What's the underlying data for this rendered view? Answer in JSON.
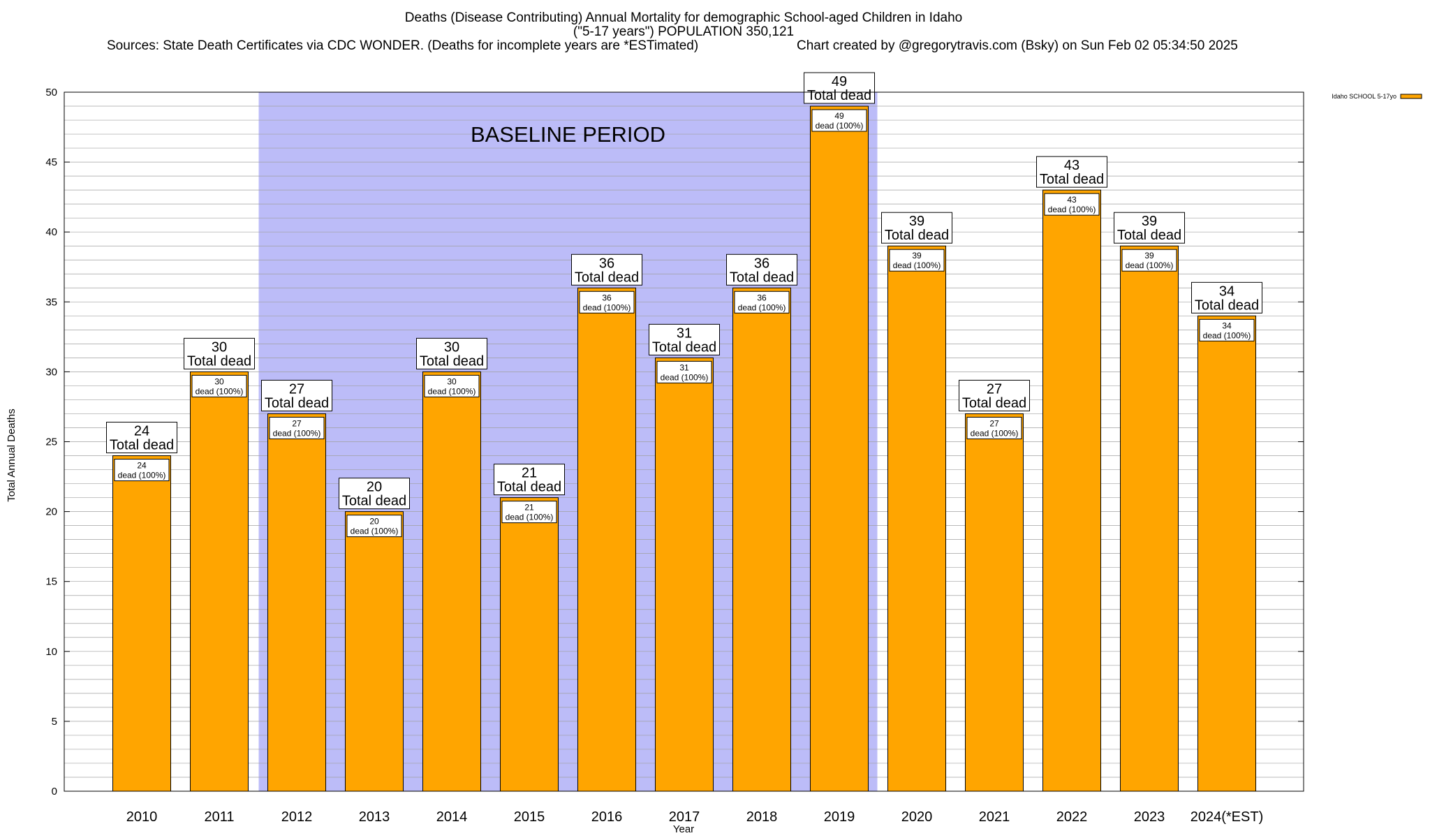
{
  "chart_data": {
    "type": "bar",
    "title": "Deaths (Disease Contributing) Annual Mortality for demographic School-aged Children in Idaho",
    "subtitle": "(\"5-17 years\") POPULATION 350,121",
    "sources": "Sources: State Death Certificates via CDC WONDER. (Deaths for incomplete years are *ESTimated)",
    "credit": "Chart created by @gregorytravis.com (Bsky) on Sun Feb 02 05:34:50 2025",
    "xlabel": "Year",
    "ylabel": "Total Annual Deaths",
    "ylim": [
      0,
      50
    ],
    "y_major_ticks": [
      0,
      5,
      10,
      15,
      20,
      25,
      30,
      35,
      40,
      45,
      50
    ],
    "y_minor_step": 1,
    "grid": true,
    "legend_position": "top-right",
    "categories": [
      "2010",
      "2011",
      "2012",
      "2013",
      "2014",
      "2015",
      "2016",
      "2017",
      "2018",
      "2019",
      "2020",
      "2021",
      "2022",
      "2023",
      "2024(*EST)"
    ],
    "series": [
      {
        "name": "Idaho SCHOOL 5-17yo",
        "color": "#ffa500",
        "values": [
          24,
          30,
          27,
          20,
          30,
          21,
          36,
          31,
          36,
          49,
          39,
          27,
          43,
          39,
          34
        ]
      }
    ],
    "total_label_suffix": "Total dead",
    "inner_label_suffix": "dead (100%)",
    "baseline_period": {
      "label": "BASELINE PERIOD",
      "from": "2012",
      "to": "2019",
      "color": "#bcbcf8"
    }
  }
}
